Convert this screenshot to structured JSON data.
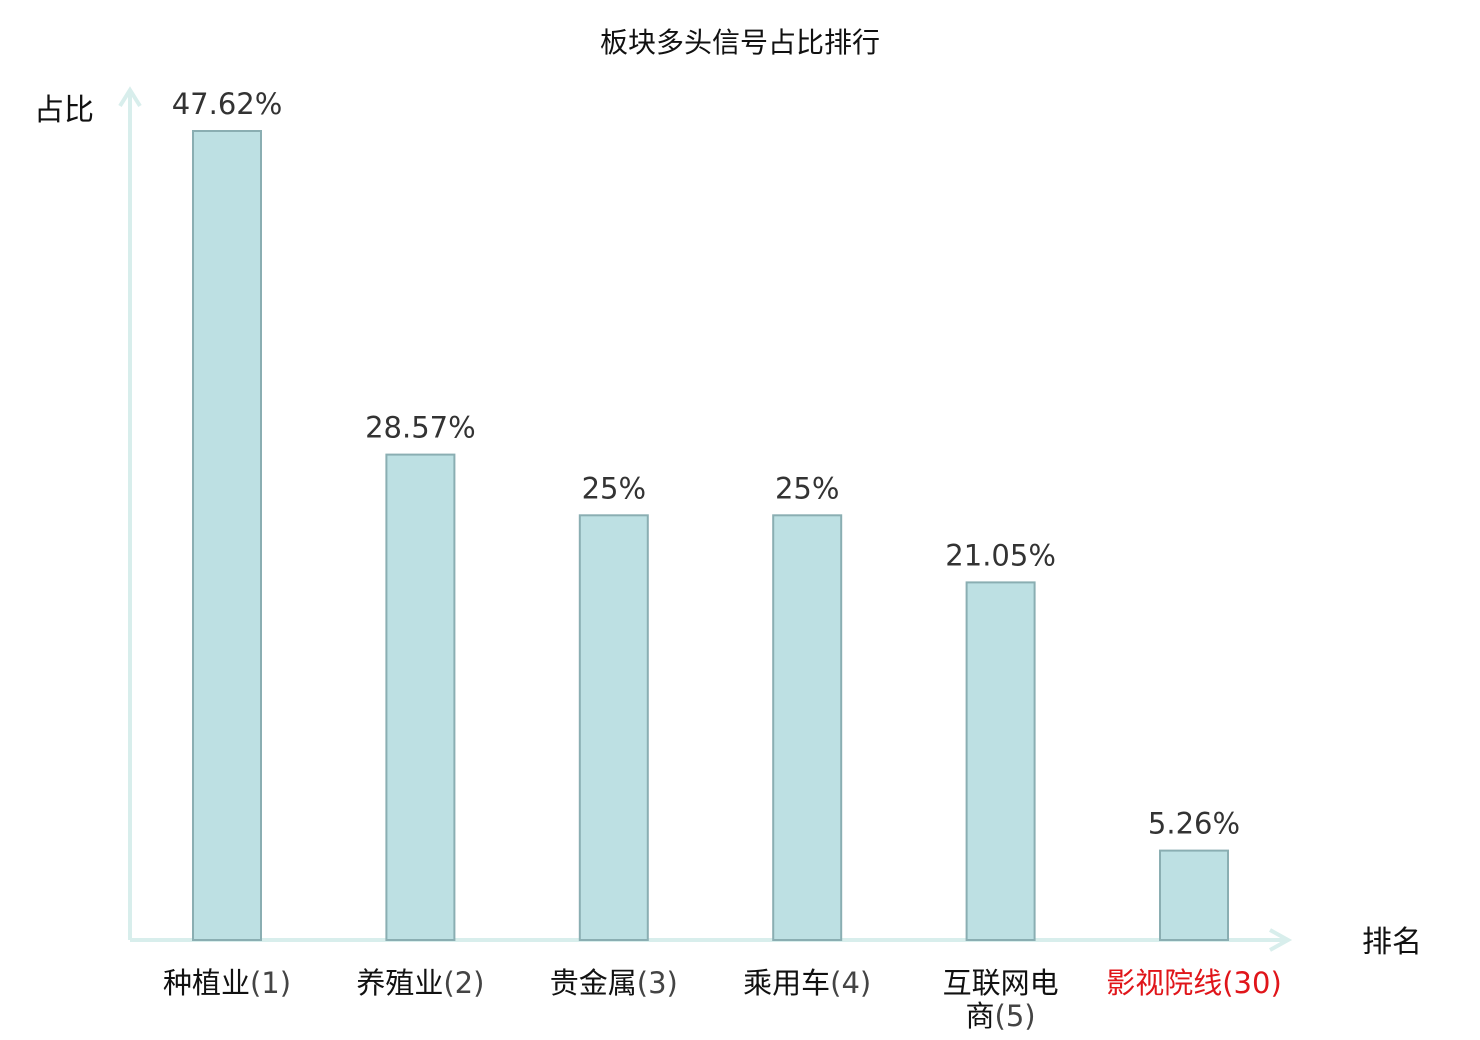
{
  "colors": {
    "bar_fill": "#bde0e3",
    "bar_stroke": "#8aaeb2",
    "axis": "#d8eeec",
    "highlight_text": "#e0151a",
    "text": "#111111",
    "value_text": "#333333"
  },
  "chart_data": {
    "type": "bar",
    "title": "板块多头信号占比排行",
    "xlabel": "排名",
    "ylabel": "占比",
    "ylim": [
      0,
      50
    ],
    "grid": false,
    "categories": [
      {
        "name": "种植业",
        "rank": "(1)",
        "highlight": false
      },
      {
        "name": "养殖业",
        "rank": "(2)",
        "highlight": false
      },
      {
        "name": "贵金属",
        "rank": "(3)",
        "highlight": false
      },
      {
        "name": "乘用车",
        "rank": "(4)",
        "highlight": false
      },
      {
        "name": "互联网电",
        "name_line2": "商",
        "rank": "(5)",
        "highlight": false
      },
      {
        "name": "影视院线",
        "rank": "(30)",
        "highlight": true
      }
    ],
    "values": [
      47.62,
      28.57,
      25,
      25,
      21.05,
      5.26
    ],
    "value_labels": [
      "47.62%",
      "28.57%",
      "25%",
      "25%",
      "21.05%",
      "5.26%"
    ]
  }
}
